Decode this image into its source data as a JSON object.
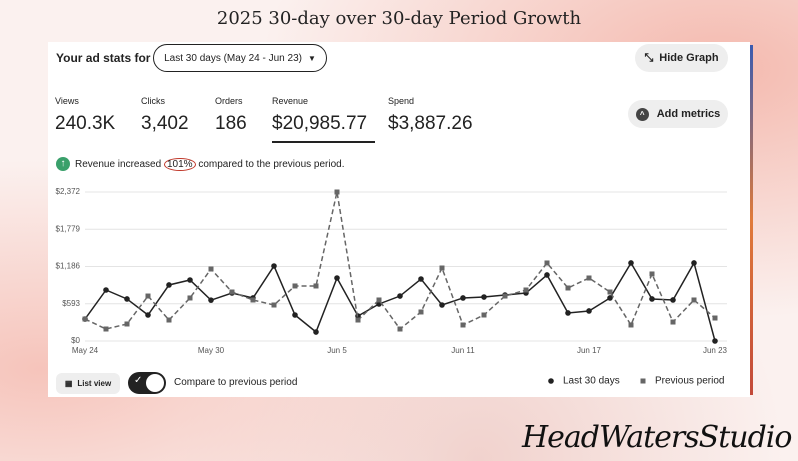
{
  "header": {
    "title": "2025 30-day over 30-day Period Growth"
  },
  "toolbar": {
    "label": "Your ad stats for",
    "period": "Last 30 days (May 24 - Jun 23)",
    "hide_graph": "Hide Graph",
    "add_metrics": "Add metrics"
  },
  "stats": [
    {
      "label": "Views",
      "value": "240.3K"
    },
    {
      "label": "Clicks",
      "value": "3,402"
    },
    {
      "label": "Orders",
      "value": "186"
    },
    {
      "label": "Revenue",
      "value": "$20,985.77"
    },
    {
      "label": "Spend",
      "value": "$3,887.26"
    }
  ],
  "notice": {
    "before": "Revenue increased",
    "highlight": "101%",
    "after": "compared to the previous period."
  },
  "footer": {
    "list_view": "List view",
    "compare": "Compare to previous period"
  },
  "watermark": "HeadWatersStudio",
  "chart_data": {
    "type": "line",
    "categories": [
      "May 24",
      null,
      null,
      null,
      null,
      null,
      "May 30",
      null,
      null,
      null,
      null,
      null,
      "Jun 5",
      null,
      null,
      null,
      null,
      null,
      "Jun 11",
      null,
      null,
      null,
      null,
      null,
      "Jun 17",
      null,
      null,
      null,
      null,
      null,
      "Jun 23"
    ],
    "series": [
      {
        "name": "Last 30 days",
        "color": "#222222",
        "values": [
          350,
          812,
          669,
          414,
          892,
          971,
          650,
          764,
          685,
          1194,
          414,
          143,
          1003,
          398,
          589,
          716,
          987,
          573,
          685,
          700,
          732,
          764,
          1051,
          446,
          478,
          685,
          1242,
          669,
          653,
          1242,
          0
        ]
      },
      {
        "name": "Previous period",
        "color": "#666666",
        "values": [
          350,
          191,
          271,
          716,
          334,
          685,
          1146,
          780,
          653,
          573,
          876,
          876,
          2372,
          334,
          653,
          191,
          462,
          1162,
          255,
          414,
          716,
          812,
          1242,
          844,
          1003,
          780,
          255,
          1067,
          302,
          653,
          366
        ]
      }
    ],
    "ylim": [
      0,
      2372
    ],
    "yticks": [
      {
        "value": 0,
        "label": "$0"
      },
      {
        "value": 593,
        "label": "$593"
      },
      {
        "value": 1186,
        "label": "$1,186"
      },
      {
        "value": 1779,
        "label": "$1,779"
      },
      {
        "value": 2372,
        "label": "$2,372"
      }
    ],
    "grid": true
  }
}
